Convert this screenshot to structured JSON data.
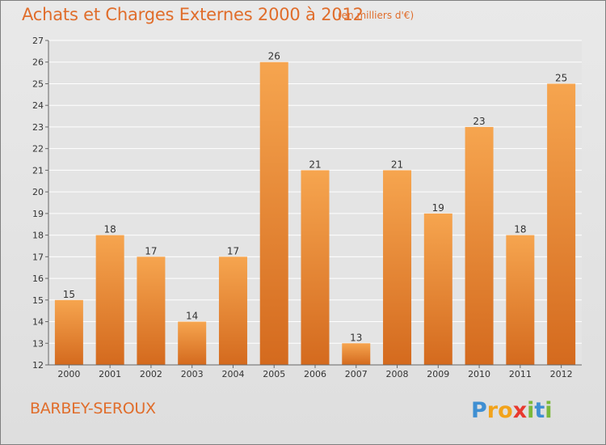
{
  "header": {
    "title": "Achats et Charges Externes 2000 à 2012",
    "subtitle": "(en milliers d'€)"
  },
  "footer": {
    "commune": "BARBEY-SEROUX",
    "logo_text": "Proxiti"
  },
  "colors": {
    "bar_top": "#f6a54f",
    "bar_bottom": "#d46a1e",
    "title": "#e06d2b",
    "grid": "#ffffff",
    "background": "#e4e4e4"
  },
  "chart_data": {
    "type": "bar",
    "title": "Achats et Charges Externes 2000 à 2012",
    "subtitle": "(en milliers d'€)",
    "categories": [
      "2000",
      "2001",
      "2002",
      "2003",
      "2004",
      "2005",
      "2006",
      "2007",
      "2008",
      "2009",
      "2010",
      "2011",
      "2012"
    ],
    "values": [
      15,
      18,
      17,
      14,
      17,
      26,
      21,
      13,
      21,
      19,
      23,
      18,
      25
    ],
    "ylim": [
      12,
      27
    ],
    "yticks": [
      12,
      13,
      14,
      15,
      16,
      17,
      18,
      19,
      20,
      21,
      22,
      23,
      24,
      25,
      26,
      27
    ],
    "grid": true,
    "legend": "none"
  }
}
